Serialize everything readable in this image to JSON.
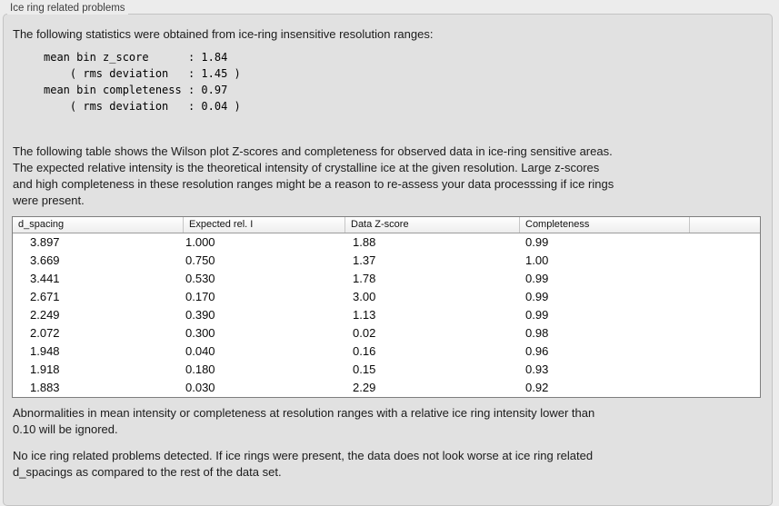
{
  "panel": {
    "title": "Ice ring related problems"
  },
  "stats": {
    "intro": "The following statistics were obtained from ice-ring insensitive resolution ranges:",
    "block": "mean bin z_score      : 1.84\n    ( rms deviation   : 1.45 )\nmean bin completeness : 0.97\n    ( rms deviation   : 0.04 )",
    "mean_bin_z_score": "1.84",
    "z_score_rms_deviation": "1.45",
    "mean_bin_completeness": "0.97",
    "completeness_rms_deviation": "0.04"
  },
  "description": "The following table shows the Wilson plot Z-scores and completeness for observed data in ice-ring sensitive areas.\nThe expected relative intensity is the theoretical intensity of crystalline ice at the given resolution. Large z-scores\nand high completeness in these resolution ranges might be a reason to re-assess your data processsing if ice rings\nwere present.",
  "table": {
    "columns": [
      "d_spacing",
      "Expected rel. I",
      "Data Z-score",
      "Completeness",
      ""
    ],
    "rows": [
      [
        "3.897",
        "1.000",
        "1.88",
        "0.99"
      ],
      [
        "3.669",
        "0.750",
        "1.37",
        "1.00"
      ],
      [
        "3.441",
        "0.530",
        "1.78",
        "0.99"
      ],
      [
        "2.671",
        "0.170",
        "3.00",
        "0.99"
      ],
      [
        "2.249",
        "0.390",
        "1.13",
        "0.99"
      ],
      [
        "2.072",
        "0.300",
        "0.02",
        "0.98"
      ],
      [
        "1.948",
        "0.040",
        "0.16",
        "0.96"
      ],
      [
        "1.918",
        "0.180",
        "0.15",
        "0.93"
      ],
      [
        "1.883",
        "0.030",
        "2.29",
        "0.92"
      ]
    ]
  },
  "footer": {
    "ignore_note": "Abnormalities in mean intensity or completeness at resolution ranges with a relative ice ring intensity lower than\n0.10 will be ignored.",
    "conclusion": "No ice ring related problems detected. If ice rings were present, the data does not look worse at ice ring related\nd_spacings as compared to the rest of the data set."
  },
  "colors": {
    "page_background": "#ececec",
    "panel_background": "#e1e1e1",
    "panel_border": "#c3c3c3",
    "table_border": "#7e7e7e",
    "table_background": "#ffffff",
    "text": "#1b1b1b"
  }
}
